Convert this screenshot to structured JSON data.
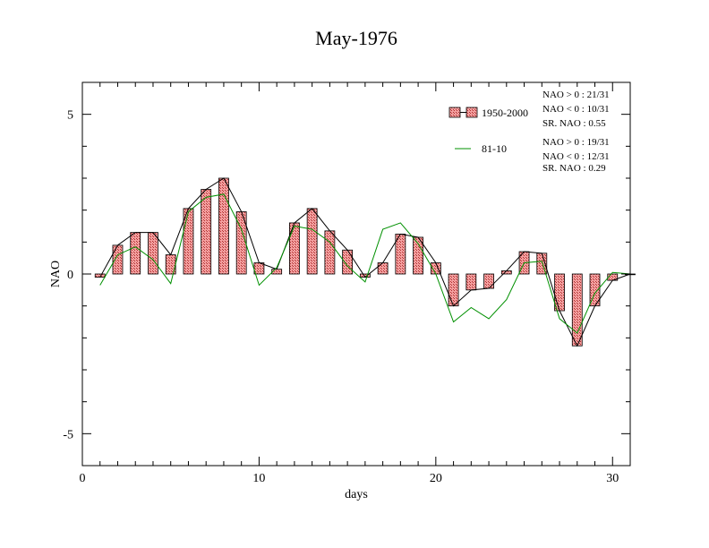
{
  "chart_data": {
    "type": "bar",
    "title": "May-1976",
    "xlabel": "days",
    "ylabel": "NAO",
    "xlim": [
      0,
      31
    ],
    "ylim": [
      -6,
      6
    ],
    "x_ticks": [
      0,
      10,
      20,
      30
    ],
    "y_ticks": [
      -5,
      0,
      5
    ],
    "x": [
      1,
      2,
      3,
      4,
      5,
      6,
      7,
      8,
      9,
      10,
      11,
      12,
      13,
      14,
      15,
      16,
      17,
      18,
      19,
      20,
      21,
      22,
      23,
      24,
      25,
      26,
      27,
      28,
      29,
      30,
      31
    ],
    "series": [
      {
        "name": "1950-2000",
        "type": "bar+line",
        "color": "#f08080",
        "line_color": "#000000",
        "values": [
          -0.1,
          0.9,
          1.3,
          1.3,
          0.6,
          2.05,
          2.65,
          3.0,
          1.95,
          0.35,
          0.15,
          1.6,
          2.05,
          1.35,
          0.75,
          -0.1,
          0.35,
          1.25,
          1.15,
          0.35,
          -1.0,
          -0.5,
          -0.45,
          0.1,
          0.7,
          0.65,
          -1.15,
          -2.25,
          -1.0,
          -0.2,
          0.0
        ]
      },
      {
        "name": "81-10",
        "type": "line",
        "color": "#009000",
        "values": [
          -0.35,
          0.6,
          0.85,
          0.45,
          -0.3,
          1.95,
          2.4,
          2.5,
          1.4,
          -0.35,
          0.2,
          1.5,
          1.4,
          1.0,
          0.25,
          -0.25,
          1.4,
          1.6,
          0.95,
          0.0,
          -1.5,
          -1.05,
          -1.4,
          -0.8,
          0.35,
          0.4,
          -1.4,
          -1.85,
          -0.6,
          0.05,
          0.0
        ]
      }
    ],
    "stats": [
      [
        "NAO > 0 : 21/31",
        "NAO < 0 : 10/31",
        "SR. NAO :  0.55"
      ],
      [
        "NAO > 0 : 19/31",
        "NAO < 0 : 12/31",
        "SR. NAO :  0.29"
      ]
    ],
    "legend_position": "top-right"
  }
}
